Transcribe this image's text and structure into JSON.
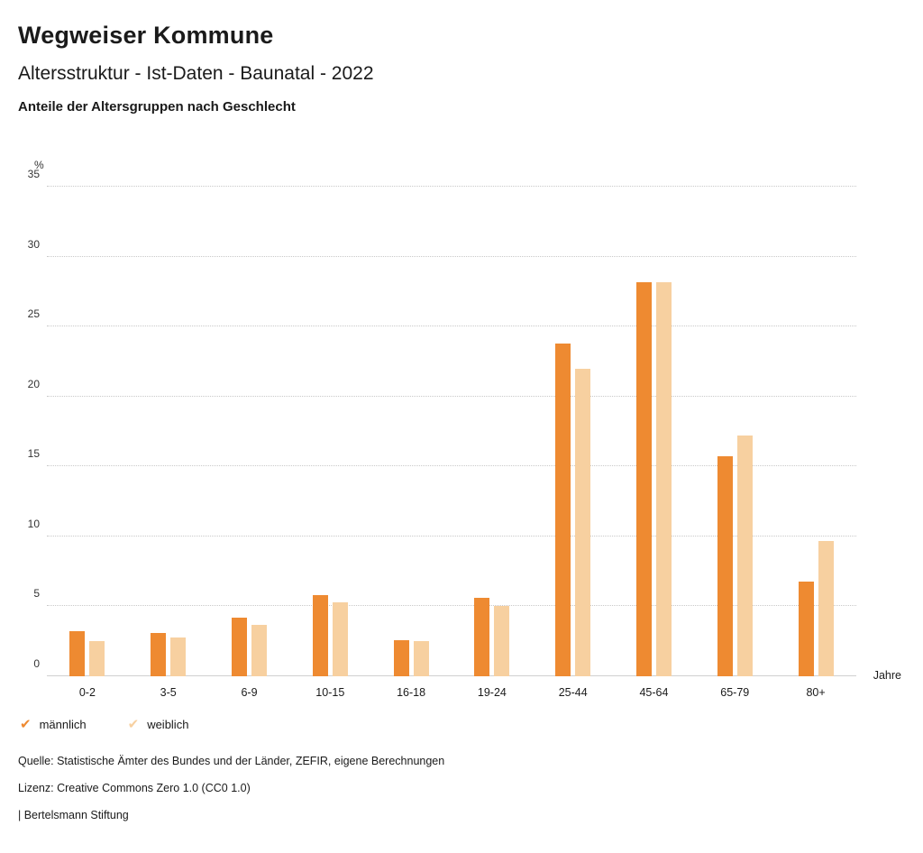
{
  "header": {
    "title": "Wegweiser Kommune",
    "subtitle": "Altersstruktur - Ist-Daten - Baunatal - 2022",
    "chart_title": "Anteile der Altersgruppen nach Geschlecht"
  },
  "chart_data": {
    "type": "bar",
    "title": "Anteile der Altersgruppen nach Geschlecht",
    "categories": [
      "0-2",
      "3-5",
      "6-9",
      "10-15",
      "16-18",
      "19-24",
      "25-44",
      "45-64",
      "65-79",
      "80+"
    ],
    "series": [
      {
        "name": "männlich",
        "color": "#ee8a31",
        "values": [
          3.2,
          3.1,
          4.2,
          5.8,
          2.6,
          5.6,
          23.8,
          28.2,
          15.7,
          6.8
        ]
      },
      {
        "name": "weiblich",
        "color": "#f7d0a0",
        "values": [
          2.5,
          2.8,
          3.7,
          5.3,
          2.5,
          5.0,
          22.0,
          28.2,
          17.2,
          9.7
        ]
      }
    ],
    "y_unit": "%",
    "x_unit": "Jahre",
    "ylim": [
      0,
      35
    ],
    "ytick_step": 5,
    "yticks": [
      0,
      5,
      10,
      15,
      20,
      25,
      30,
      35
    ],
    "grid": "horizontal-dotted",
    "legend_position": "bottom-left"
  },
  "footer": {
    "source": "Quelle: Statistische Ämter des Bundes und der Länder, ZEFIR, eigene Berechnungen",
    "license": "Lizenz: Creative Commons Zero 1.0 (CC0 1.0)",
    "attribution": "| Bertelsmann Stiftung"
  }
}
